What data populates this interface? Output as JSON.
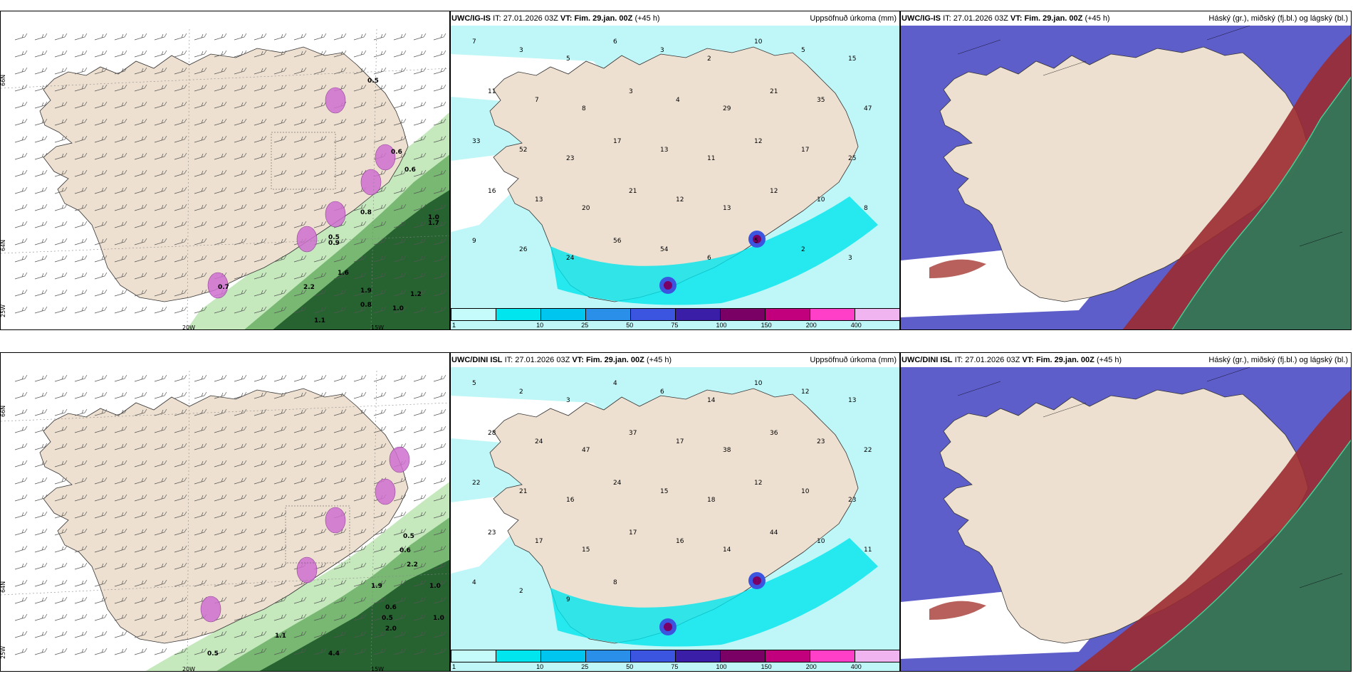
{
  "rows": [
    {
      "model_prefix": "UWC/IG-IS",
      "it_label": "IT:",
      "it_value": "27.01.2026 03Z",
      "vt_label": "VT:",
      "vt_value": "Fim. 29.jan. 00Z",
      "lead": "(+45 h)"
    },
    {
      "model_prefix": "UWC/DINI ISL",
      "it_label": "IT:",
      "it_value": "27.01.2026 03Z",
      "vt_label": "VT:",
      "vt_value": "Fim. 29.jan. 00Z",
      "lead": "(+45 h)"
    }
  ],
  "precip_title": "Uppsöfnuð úrkoma (mm)",
  "cloud_title": "Háský (gr.), miðský (fj.bl.) og lágský (bl.)",
  "colorbar": {
    "labels": [
      "1",
      "10",
      "25",
      "50",
      "75",
      "100",
      "150",
      "200",
      "400"
    ],
    "colors": [
      "#c6fbfb",
      "#00e5ee",
      "#00c5ee",
      "#2a8fe8",
      "#3b55e0",
      "#3a1ea8",
      "#7a0066",
      "#c2007e",
      "#ff3fc7",
      "#f0b4f0"
    ]
  },
  "axis_labels": {
    "lat_66": "66N",
    "lat_64": "64N",
    "lon_25": "25W",
    "lon_20": "20W",
    "lon_15": "15W"
  },
  "precip_numbers_top": [
    "7",
    "3",
    "5",
    "6",
    "3",
    "2",
    "10",
    "5",
    "15",
    "11",
    "7",
    "8",
    "3",
    "4",
    "29",
    "21",
    "35",
    "47",
    "33",
    "52",
    "23",
    "17",
    "13",
    "11",
    "12",
    "17",
    "25",
    "16",
    "13",
    "20",
    "21",
    "12",
    "13",
    "12",
    "10",
    "8",
    "9",
    "26",
    "24",
    "56",
    "54",
    "6",
    "5",
    "2",
    "3"
  ],
  "precip_numbers_bottom": [
    "5",
    "2",
    "3",
    "4",
    "6",
    "14",
    "10",
    "12",
    "13",
    "28",
    "24",
    "47",
    "37",
    "17",
    "38",
    "36",
    "23",
    "22",
    "22",
    "21",
    "16",
    "24",
    "15",
    "18",
    "12",
    "10",
    "23",
    "23",
    "17",
    "15",
    "17",
    "16",
    "14",
    "44",
    "10",
    "11",
    "4",
    "2",
    "9",
    "8"
  ],
  "wind_values_top": [
    "0.5",
    "0.6",
    "0.6",
    "0.8",
    "0.5",
    "1.0",
    "0.9",
    "1.2",
    "1.6",
    "2.2",
    "1.9",
    "0.8",
    "1.0",
    "1.1",
    "0.7",
    "1.7"
  ],
  "wind_values_bottom": [
    "0.5",
    "2.2",
    "0.6",
    "1.0",
    "0.5",
    "1.9",
    "4.4",
    "2.0",
    "1.1",
    "1.0",
    "0.5",
    "0.6"
  ],
  "colors": {
    "land": "#eee0d0",
    "sea_precip": "#bff7f8",
    "cloud_high": "#5555c8",
    "cloud_mid": "#9a2b30",
    "cloud_low": "#2f7a5a",
    "green_precip": "#3a8a3a",
    "pink_snow": "#d070d0"
  }
}
